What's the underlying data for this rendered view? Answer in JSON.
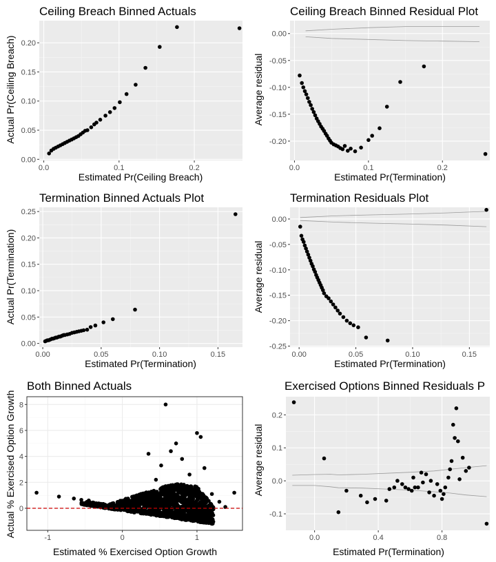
{
  "chart_data": [
    {
      "type": "scatter",
      "title": "Ceiling Breach Binned Actuals",
      "xlabel": "Estimated Pr(Ceiling Breach)",
      "ylabel": "Actual Pr(Ceiling Breach)",
      "xlim": [
        -0.006,
        0.264
      ],
      "ylim": [
        -0.002,
        0.238
      ],
      "xticks": [
        0.0,
        0.1,
        0.2
      ],
      "xtick_labels": [
        "0.0",
        "0.1",
        "0.2"
      ],
      "yticks": [
        0.0,
        0.05,
        0.1,
        0.15,
        0.2
      ],
      "ytick_labels": [
        "0.00",
        "0.05",
        "0.10",
        "0.15",
        "0.20"
      ],
      "grid": true,
      "points": [
        [
          0.007,
          0.01
        ],
        [
          0.01,
          0.015
        ],
        [
          0.013,
          0.018
        ],
        [
          0.016,
          0.02
        ],
        [
          0.019,
          0.022
        ],
        [
          0.022,
          0.024
        ],
        [
          0.025,
          0.026
        ],
        [
          0.028,
          0.028
        ],
        [
          0.031,
          0.03
        ],
        [
          0.034,
          0.032
        ],
        [
          0.037,
          0.034
        ],
        [
          0.04,
          0.036
        ],
        [
          0.043,
          0.038
        ],
        [
          0.046,
          0.04
        ],
        [
          0.049,
          0.043
        ],
        [
          0.052,
          0.046
        ],
        [
          0.055,
          0.049
        ],
        [
          0.058,
          0.05
        ],
        [
          0.063,
          0.055
        ],
        [
          0.067,
          0.06
        ],
        [
          0.07,
          0.063
        ],
        [
          0.075,
          0.068
        ],
        [
          0.082,
          0.075
        ],
        [
          0.088,
          0.081
        ],
        [
          0.094,
          0.088
        ],
        [
          0.101,
          0.098
        ],
        [
          0.11,
          0.112
        ],
        [
          0.122,
          0.128
        ],
        [
          0.135,
          0.157
        ],
        [
          0.154,
          0.193
        ],
        [
          0.177,
          0.227
        ],
        [
          0.26,
          0.225
        ]
      ]
    },
    {
      "type": "scatter",
      "title": "Ceiling Breach Binned Residual Plot",
      "xlabel": "Estimated Pr(Termination)",
      "ylabel": "Average residual",
      "xlim": [
        -0.006,
        0.264
      ],
      "ylim": [
        -0.236,
        0.024
      ],
      "xticks": [
        0.0,
        0.1,
        0.2
      ],
      "xtick_labels": [
        "0.0",
        "0.1",
        "0.2"
      ],
      "yticks": [
        0.0,
        -0.05,
        -0.1,
        -0.15,
        -0.2
      ],
      "ytick_labels": [
        "0.00",
        "-0.05",
        "-0.10",
        "-0.15",
        "-0.20"
      ],
      "grid": true,
      "bands": {
        "upper": [
          [
            0.015,
            0.005
          ],
          [
            0.05,
            0.008
          ],
          [
            0.1,
            0.011
          ],
          [
            0.15,
            0.013
          ],
          [
            0.2,
            0.013
          ],
          [
            0.25,
            0.013
          ]
        ],
        "lower": [
          [
            0.015,
            -0.006
          ],
          [
            0.05,
            -0.009
          ],
          [
            0.1,
            -0.011
          ],
          [
            0.15,
            -0.013
          ],
          [
            0.2,
            -0.014
          ],
          [
            0.25,
            -0.015
          ]
        ]
      },
      "points": [
        [
          0.007,
          -0.078
        ],
        [
          0.01,
          -0.092
        ],
        [
          0.012,
          -0.1
        ],
        [
          0.014,
          -0.107
        ],
        [
          0.016,
          -0.113
        ],
        [
          0.018,
          -0.12
        ],
        [
          0.02,
          -0.127
        ],
        [
          0.022,
          -0.133
        ],
        [
          0.024,
          -0.14
        ],
        [
          0.026,
          -0.146
        ],
        [
          0.028,
          -0.152
        ],
        [
          0.03,
          -0.158
        ],
        [
          0.032,
          -0.163
        ],
        [
          0.034,
          -0.168
        ],
        [
          0.036,
          -0.173
        ],
        [
          0.038,
          -0.177
        ],
        [
          0.04,
          -0.181
        ],
        [
          0.042,
          -0.186
        ],
        [
          0.044,
          -0.19
        ],
        [
          0.046,
          -0.195
        ],
        [
          0.048,
          -0.199
        ],
        [
          0.05,
          -0.203
        ],
        [
          0.053,
          -0.206
        ],
        [
          0.056,
          -0.208
        ],
        [
          0.059,
          -0.21
        ],
        [
          0.062,
          -0.213
        ],
        [
          0.065,
          -0.215
        ],
        [
          0.068,
          -0.209
        ],
        [
          0.072,
          -0.218
        ],
        [
          0.076,
          -0.214
        ],
        [
          0.082,
          -0.219
        ],
        [
          0.09,
          -0.212
        ],
        [
          0.1,
          -0.198
        ],
        [
          0.105,
          -0.19
        ],
        [
          0.115,
          -0.176
        ],
        [
          0.125,
          -0.136
        ],
        [
          0.143,
          -0.09
        ],
        [
          0.175,
          -0.061
        ],
        [
          0.258,
          -0.224
        ]
      ]
    },
    {
      "type": "scatter",
      "title": "Termination Binned Actuals Plot",
      "xlabel": "Estimated Pr(Termination)",
      "ylabel": "Actual Pr(Termination)",
      "xlim": [
        -0.003,
        0.171
      ],
      "ylim": [
        -0.007,
        0.258
      ],
      "xticks": [
        0.0,
        0.05,
        0.1,
        0.15
      ],
      "xtick_labels": [
        "0.00",
        "0.05",
        "0.10",
        "0.15"
      ],
      "yticks": [
        0.0,
        0.05,
        0.1,
        0.15,
        0.2,
        0.25
      ],
      "ytick_labels": [
        "0.00",
        "0.05",
        "0.10",
        "0.15",
        "0.20",
        "0.25"
      ],
      "grid": true,
      "points": [
        [
          0.002,
          0.004
        ],
        [
          0.003,
          0.005
        ],
        [
          0.004,
          0.006
        ],
        [
          0.005,
          0.006
        ],
        [
          0.006,
          0.007
        ],
        [
          0.007,
          0.008
        ],
        [
          0.008,
          0.009
        ],
        [
          0.009,
          0.009
        ],
        [
          0.01,
          0.01
        ],
        [
          0.011,
          0.011
        ],
        [
          0.012,
          0.011
        ],
        [
          0.013,
          0.012
        ],
        [
          0.014,
          0.013
        ],
        [
          0.015,
          0.013
        ],
        [
          0.016,
          0.014
        ],
        [
          0.017,
          0.015
        ],
        [
          0.018,
          0.016
        ],
        [
          0.019,
          0.016
        ],
        [
          0.021,
          0.017
        ],
        [
          0.023,
          0.018
        ],
        [
          0.025,
          0.02
        ],
        [
          0.027,
          0.021
        ],
        [
          0.029,
          0.022
        ],
        [
          0.031,
          0.023
        ],
        [
          0.033,
          0.024
        ],
        [
          0.035,
          0.025
        ],
        [
          0.038,
          0.026
        ],
        [
          0.041,
          0.031
        ],
        [
          0.045,
          0.034
        ],
        [
          0.052,
          0.04
        ],
        [
          0.06,
          0.046
        ],
        [
          0.079,
          0.064
        ],
        [
          0.165,
          0.245
        ]
      ]
    },
    {
      "type": "scatter",
      "title": "Termination Residuals Plot",
      "xlabel": "Estimated Pr(Termination)",
      "ylabel": "Average residual",
      "xlim": [
        -0.008,
        0.168
      ],
      "ylim": [
        -0.252,
        0.023
      ],
      "xticks": [
        0.0,
        0.05,
        0.1,
        0.15
      ],
      "xtick_labels": [
        "0.00",
        "0.05",
        "0.10",
        "0.15"
      ],
      "yticks": [
        0.0,
        -0.05,
        -0.1,
        -0.15,
        -0.2,
        -0.25
      ],
      "ytick_labels": [
        "0.00",
        "-0.05",
        "-0.10",
        "-0.15",
        "-0.20",
        "-0.25"
      ],
      "grid": true,
      "bands": {
        "upper": [
          [
            0.001,
            0.003
          ],
          [
            0.03,
            0.006
          ],
          [
            0.06,
            0.008
          ],
          [
            0.1,
            0.01
          ],
          [
            0.13,
            0.012
          ],
          [
            0.165,
            0.015
          ]
        ],
        "lower": [
          [
            0.001,
            -0.003
          ],
          [
            0.03,
            -0.006
          ],
          [
            0.06,
            -0.008
          ],
          [
            0.1,
            -0.01
          ],
          [
            0.13,
            -0.012
          ],
          [
            0.165,
            -0.015
          ]
        ]
      },
      "points": [
        [
          0.001,
          -0.015
        ],
        [
          0.002,
          -0.033
        ],
        [
          0.003,
          -0.04
        ],
        [
          0.004,
          -0.045
        ],
        [
          0.005,
          -0.052
        ],
        [
          0.006,
          -0.058
        ],
        [
          0.007,
          -0.064
        ],
        [
          0.008,
          -0.07
        ],
        [
          0.009,
          -0.076
        ],
        [
          0.01,
          -0.082
        ],
        [
          0.011,
          -0.088
        ],
        [
          0.012,
          -0.093
        ],
        [
          0.013,
          -0.099
        ],
        [
          0.014,
          -0.104
        ],
        [
          0.015,
          -0.11
        ],
        [
          0.016,
          -0.115
        ],
        [
          0.017,
          -0.12
        ],
        [
          0.018,
          -0.125
        ],
        [
          0.019,
          -0.13
        ],
        [
          0.02,
          -0.135
        ],
        [
          0.021,
          -0.14
        ],
        [
          0.022,
          -0.146
        ],
        [
          0.024,
          -0.152
        ],
        [
          0.026,
          -0.156
        ],
        [
          0.028,
          -0.162
        ],
        [
          0.03,
          -0.168
        ],
        [
          0.032,
          -0.174
        ],
        [
          0.034,
          -0.18
        ],
        [
          0.036,
          -0.186
        ],
        [
          0.039,
          -0.193
        ],
        [
          0.042,
          -0.2
        ],
        [
          0.045,
          -0.205
        ],
        [
          0.048,
          -0.209
        ],
        [
          0.052,
          -0.213
        ],
        [
          0.059,
          -0.233
        ],
        [
          0.078,
          -0.239
        ],
        [
          0.165,
          0.018
        ]
      ]
    },
    {
      "type": "scatter",
      "title": "Both Binned Actuals",
      "xlabel": "Estimated % Exercised Option Growth",
      "ylabel": "Actual % Exercised Option Growth",
      "xlim": [
        -1.28,
        1.61
      ],
      "ylim": [
        -1.7,
        8.6
      ],
      "xticks": [
        -1,
        0,
        1
      ],
      "xtick_labels": [
        "-1",
        "0",
        "1"
      ],
      "yticks": [
        0,
        2,
        4,
        6,
        8
      ],
      "ytick_labels": [
        "0",
        "2",
        "4",
        "6",
        "8"
      ],
      "grid": true,
      "theme": "bw",
      "reference_line": {
        "y": 0,
        "color": "#cc0000",
        "style": "dashed"
      },
      "outliers": [
        [
          -1.15,
          1.2
        ],
        [
          -0.85,
          0.9
        ],
        [
          -0.65,
          0.75
        ],
        [
          -0.55,
          0.65
        ],
        [
          -0.45,
          0.6
        ],
        [
          0.35,
          4.2
        ],
        [
          0.45,
          2.2
        ],
        [
          0.52,
          3.3
        ],
        [
          0.58,
          8.0
        ],
        [
          0.65,
          4.4
        ],
        [
          0.72,
          5.0
        ],
        [
          0.8,
          3.8
        ],
        [
          0.9,
          2.6
        ],
        [
          1.0,
          5.8
        ],
        [
          1.05,
          5.5
        ],
        [
          1.1,
          3.1
        ],
        [
          1.2,
          1.1
        ],
        [
          1.3,
          0.5
        ],
        [
          1.38,
          0.1
        ],
        [
          1.5,
          1.2
        ]
      ]
    },
    {
      "type": "scatter",
      "title": "Exercised Options Binned Residuals P",
      "xlabel": "Estimated Pr(Termination)",
      "ylabel": "Average residual",
      "xlim": [
        -0.18,
        1.1
      ],
      "ylim": [
        -0.15,
        0.255
      ],
      "xticks": [
        0.0,
        0.4,
        0.8
      ],
      "xtick_labels": [
        "0.0",
        "0.4",
        "0.8"
      ],
      "yticks": [
        0.2,
        0.1,
        0.0,
        -0.1
      ],
      "ytick_labels": [
        "0.2",
        "0.1",
        "0.0",
        "-0.1"
      ],
      "grid": true,
      "bands": {
        "upper": [
          [
            -0.14,
            0.017
          ],
          [
            0.0,
            0.019
          ],
          [
            0.1,
            0.02
          ],
          [
            0.15,
            0.018
          ],
          [
            0.3,
            0.02
          ],
          [
            0.5,
            0.024
          ],
          [
            0.6,
            0.026
          ],
          [
            0.75,
            0.03
          ],
          [
            0.85,
            0.035
          ],
          [
            0.95,
            0.04
          ],
          [
            1.08,
            0.046
          ]
        ],
        "lower": [
          [
            -0.14,
            -0.014
          ],
          [
            0.0,
            -0.014
          ],
          [
            0.1,
            -0.018
          ],
          [
            0.15,
            -0.021
          ],
          [
            0.3,
            -0.022
          ],
          [
            0.5,
            -0.026
          ],
          [
            0.6,
            -0.028
          ],
          [
            0.75,
            -0.033
          ],
          [
            0.85,
            -0.037
          ],
          [
            0.95,
            -0.043
          ],
          [
            1.08,
            -0.048
          ]
        ]
      },
      "points": [
        [
          -0.13,
          0.238
        ],
        [
          0.06,
          0.068
        ],
        [
          0.15,
          -0.095
        ],
        [
          0.2,
          -0.03
        ],
        [
          0.29,
          -0.045
        ],
        [
          0.33,
          -0.065
        ],
        [
          0.38,
          -0.055
        ],
        [
          0.45,
          -0.06
        ],
        [
          0.47,
          -0.025
        ],
        [
          0.5,
          -0.02
        ],
        [
          0.52,
          0.0
        ],
        [
          0.55,
          -0.01
        ],
        [
          0.57,
          -0.02
        ],
        [
          0.59,
          -0.025
        ],
        [
          0.61,
          -0.03
        ],
        [
          0.62,
          0.01
        ],
        [
          0.63,
          -0.02
        ],
        [
          0.65,
          -0.02
        ],
        [
          0.67,
          0.025
        ],
        [
          0.68,
          -0.005
        ],
        [
          0.7,
          0.02
        ],
        [
          0.72,
          -0.035
        ],
        [
          0.73,
          0.0
        ],
        [
          0.75,
          -0.045
        ],
        [
          0.77,
          -0.01
        ],
        [
          0.79,
          -0.03
        ],
        [
          0.8,
          -0.055
        ],
        [
          0.81,
          -0.04
        ],
        [
          0.82,
          -0.02
        ],
        [
          0.84,
          0.01
        ],
        [
          0.85,
          0.035
        ],
        [
          0.86,
          0.06
        ],
        [
          0.87,
          0.17
        ],
        [
          0.88,
          0.13
        ],
        [
          0.89,
          0.22
        ],
        [
          0.9,
          0.12
        ],
        [
          0.91,
          0.005
        ],
        [
          0.93,
          0.07
        ],
        [
          0.95,
          0.03
        ],
        [
          0.97,
          0.04
        ],
        [
          1.08,
          -0.13
        ]
      ]
    }
  ]
}
